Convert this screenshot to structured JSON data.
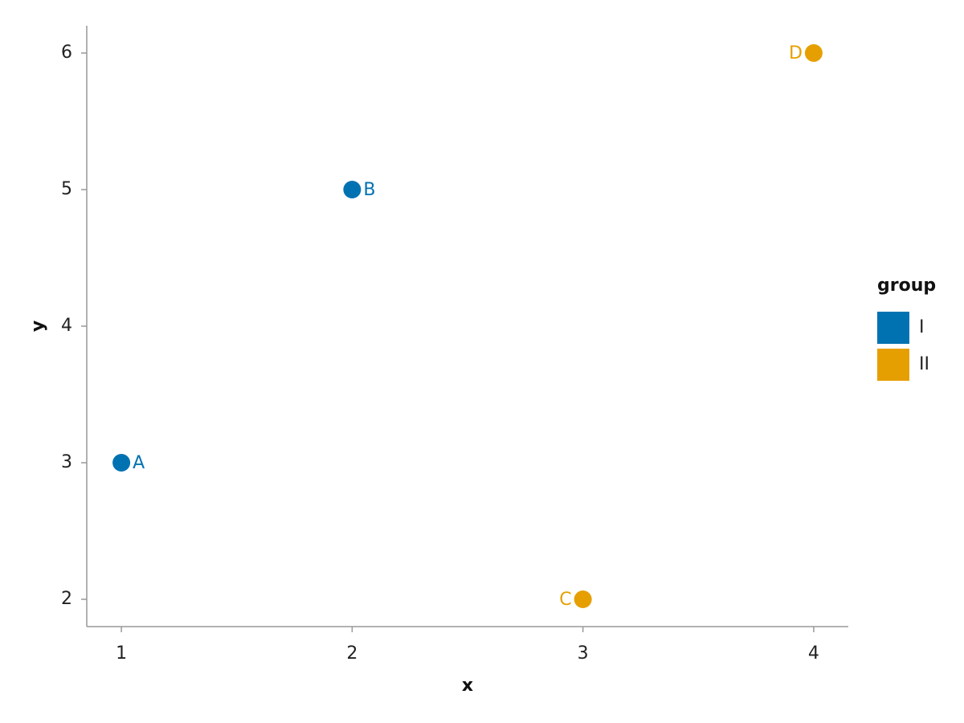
{
  "chart_data": {
    "type": "scatter",
    "x_label": "x",
    "y_label": "y",
    "xlim": [
      0.85,
      4.15
    ],
    "ylim": [
      1.8,
      6.2
    ],
    "xticks": [
      1,
      2,
      3,
      4
    ],
    "yticks": [
      2,
      3,
      4,
      5,
      6
    ],
    "legend_title": "group",
    "legend_position": "right",
    "series": [
      {
        "name": "I",
        "color": "#0072b2",
        "x": [
          1,
          2
        ],
        "y": [
          3,
          5
        ],
        "labels": [
          "A",
          "B"
        ]
      },
      {
        "name": "II",
        "color": "#e69f00",
        "x": [
          3,
          4
        ],
        "y": [
          2,
          6
        ],
        "labels": [
          "C",
          "D"
        ]
      }
    ]
  }
}
